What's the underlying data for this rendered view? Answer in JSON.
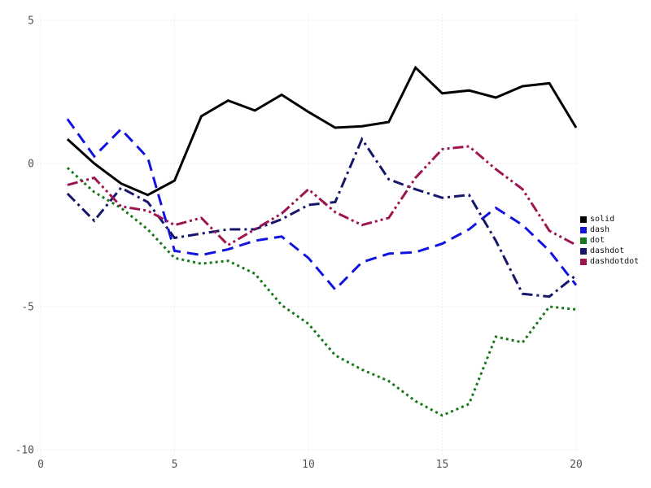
{
  "chart_data": {
    "type": "line",
    "title": "",
    "xlabel": "",
    "ylabel": "",
    "xlim": [
      0,
      20.3
    ],
    "ylim": [
      -10.3,
      5.2
    ],
    "x_ticks": [
      0,
      5,
      10,
      15,
      20
    ],
    "y_ticks": [
      5,
      0,
      -5,
      -10
    ],
    "grid": true,
    "grid_style": "dotted",
    "grid_color": "#dddde8",
    "tick_label_color": "#545454",
    "legend_position": "right",
    "x": [
      1,
      2,
      3,
      4,
      5,
      6,
      7,
      8,
      9,
      10,
      11,
      12,
      13,
      14,
      15,
      16,
      17,
      18,
      19,
      20
    ],
    "series": [
      {
        "name": "solid",
        "color": "#000000",
        "dash": "solid",
        "values": [
          0.85,
          0.0,
          -0.7,
          -1.1,
          -0.6,
          1.65,
          2.2,
          1.85,
          2.4,
          1.8,
          1.25,
          1.3,
          1.45,
          3.35,
          2.45,
          2.55,
          2.3,
          2.7,
          2.8,
          1.25
        ]
      },
      {
        "name": "dash",
        "color": "#1212e0",
        "dash": "dash",
        "values": [
          1.55,
          0.25,
          1.2,
          0.2,
          -3.05,
          -3.2,
          -3.0,
          -2.7,
          -2.55,
          -3.3,
          -4.4,
          -3.45,
          -3.15,
          -3.1,
          -2.8,
          -2.3,
          -1.55,
          -2.15,
          -3.05,
          -4.25
        ]
      },
      {
        "name": "dot",
        "color": "#187818",
        "dash": "dot",
        "values": [
          -0.15,
          -1.0,
          -1.55,
          -2.3,
          -3.3,
          -3.5,
          -3.4,
          -3.85,
          -4.95,
          -5.6,
          -6.7,
          -7.2,
          -7.6,
          -8.3,
          -8.8,
          -8.4,
          -6.05,
          -6.25,
          -5.0,
          -5.1
        ]
      },
      {
        "name": "dashdot",
        "color": "#16166a",
        "dash": "dashdot",
        "values": [
          -1.05,
          -2.0,
          -0.85,
          -1.35,
          -2.6,
          -2.45,
          -2.3,
          -2.3,
          -1.95,
          -1.45,
          -1.35,
          0.85,
          -0.55,
          -0.9,
          -1.2,
          -1.1,
          -2.7,
          -4.55,
          -4.65,
          -3.9
        ]
      },
      {
        "name": "dashdotdot",
        "color": "#9e1450",
        "dash": "dashdotdot",
        "values": [
          -0.75,
          -0.5,
          -1.5,
          -1.65,
          -2.15,
          -1.9,
          -2.85,
          -2.3,
          -1.75,
          -0.9,
          -1.7,
          -2.15,
          -1.9,
          -0.5,
          0.5,
          0.6,
          -0.2,
          -0.9,
          -2.35,
          -2.85
        ]
      }
    ]
  },
  "legend": {
    "items": [
      {
        "label": "solid"
      },
      {
        "label": "dash"
      },
      {
        "label": "dot"
      },
      {
        "label": "dashdot"
      },
      {
        "label": "dashdotdot"
      }
    ]
  }
}
